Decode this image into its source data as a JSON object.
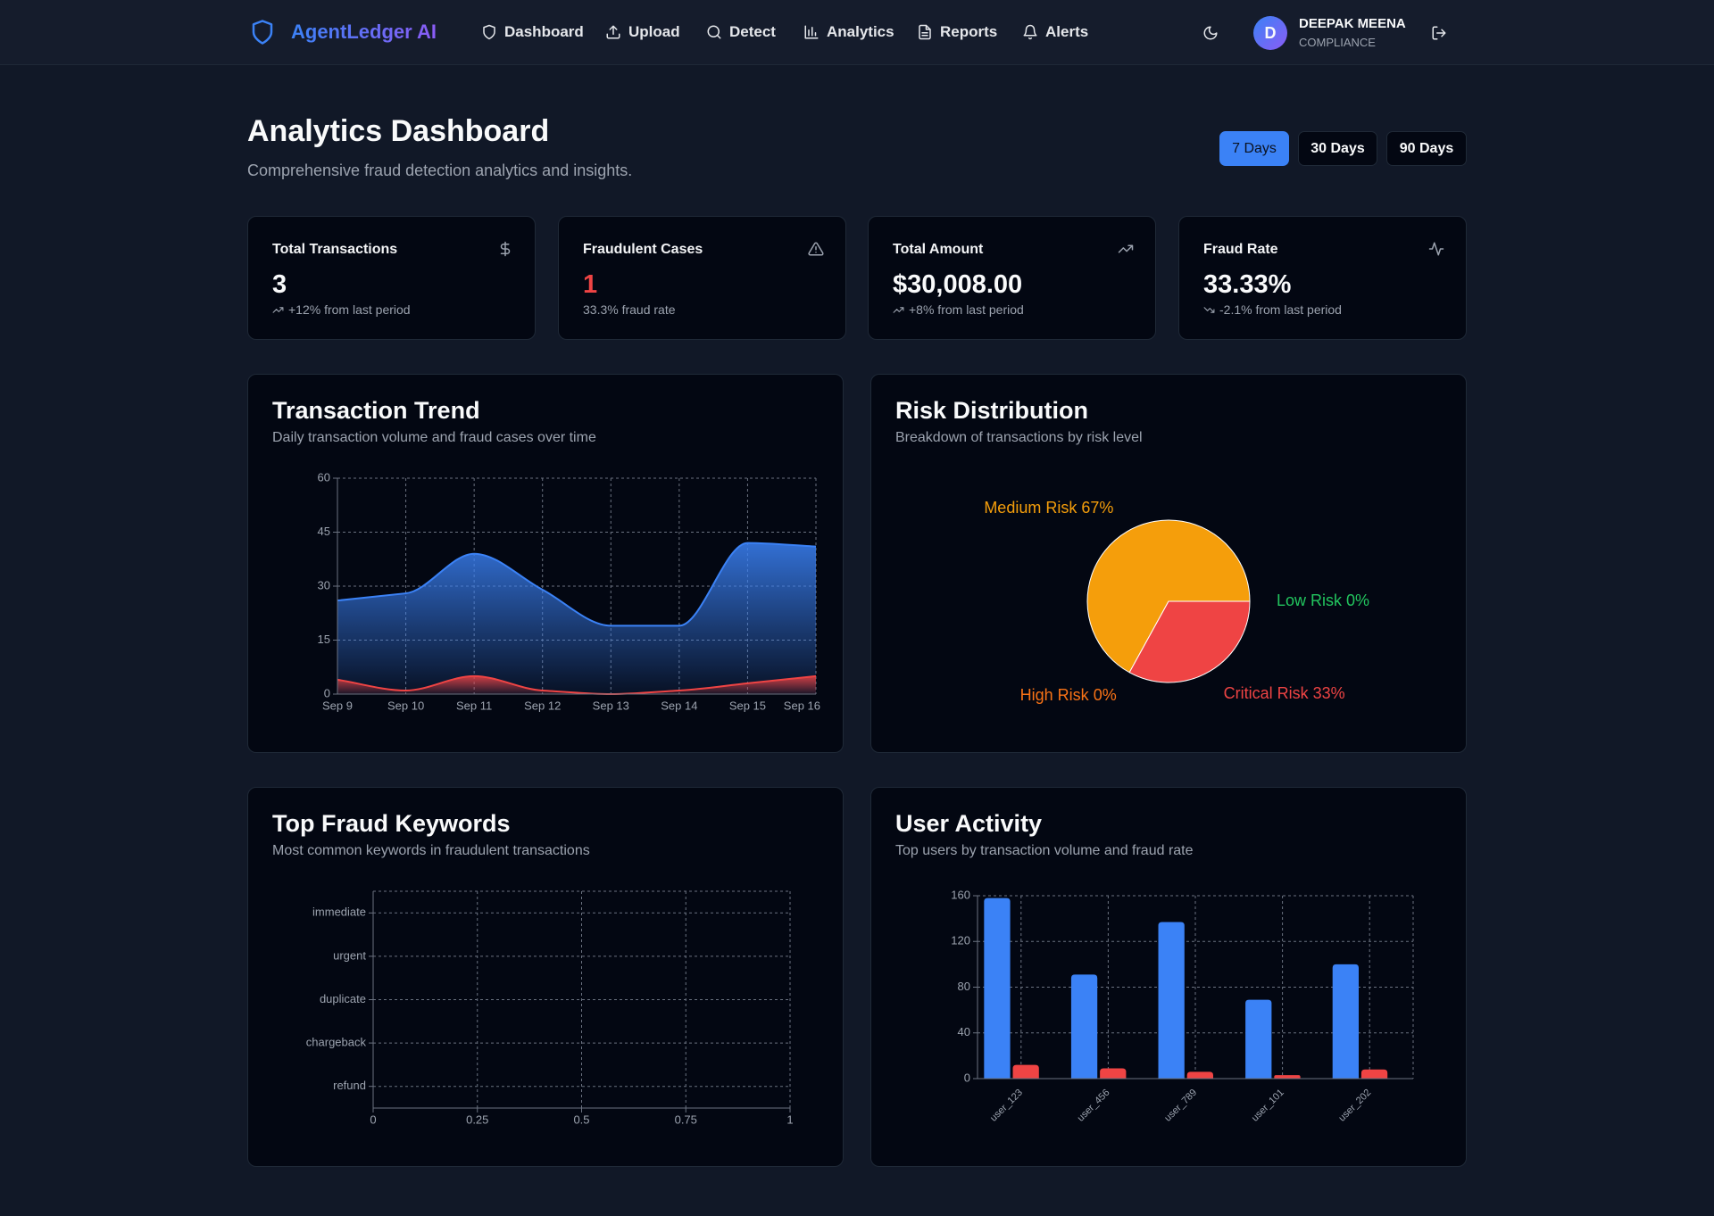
{
  "header": {
    "brand": "AgentLedger AI",
    "nav": [
      "Dashboard",
      "Upload",
      "Detect",
      "Analytics",
      "Reports",
      "Alerts"
    ],
    "user": {
      "initial": "D",
      "name": "DEEPAK MEENA",
      "role": "COMPLIANCE"
    }
  },
  "page": {
    "title": "Analytics Dashboard",
    "subtitle": "Comprehensive fraud detection analytics and insights.",
    "ranges": [
      "7 Days",
      "30 Days",
      "90 Days"
    ]
  },
  "stats": [
    {
      "label": "Total Transactions",
      "value": "3",
      "change": "+12% from last period"
    },
    {
      "label": "Fraudulent Cases",
      "value": "1",
      "change": "33.3% fraud rate"
    },
    {
      "label": "Total Amount",
      "value": "$30,008.00",
      "change": "+8% from last period"
    },
    {
      "label": "Fraud Rate",
      "value": "33.33%",
      "change": "-2.1% from last period"
    }
  ],
  "chart_data": [
    {
      "type": "area",
      "title": "Transaction Trend",
      "subtitle": "Daily transaction volume and fraud cases over time",
      "categories": [
        "Sep 9",
        "Sep 10",
        "Sep 11",
        "Sep 12",
        "Sep 13",
        "Sep 14",
        "Sep 15",
        "Sep 16"
      ],
      "series": [
        {
          "color": "#3b82f6",
          "values": [
            26,
            28,
            39,
            29,
            19,
            19,
            42,
            41
          ]
        },
        {
          "color": "#ef4444",
          "values": [
            4,
            1,
            5,
            1,
            0,
            1,
            3,
            5
          ]
        }
      ],
      "ylim": [
        0,
        60
      ],
      "yticks": [
        0,
        15,
        30,
        45,
        60
      ],
      "grid": true
    },
    {
      "type": "pie",
      "title": "Risk Distribution",
      "subtitle": "Breakdown of transactions by risk level",
      "categories": [
        "Low Risk",
        "Medium Risk",
        "High Risk",
        "Critical Risk"
      ],
      "values": [
        0,
        67,
        0,
        33
      ],
      "value_labels": [
        "0%",
        "67%",
        "0%",
        "33%"
      ],
      "colors": [
        "#22c55e",
        "#f59e0b",
        "#f97316",
        "#ef4444"
      ]
    },
    {
      "type": "hbar",
      "title": "Top Fraud Keywords",
      "subtitle": "Most common keywords in fraudulent transactions",
      "categories": [
        "immediate",
        "urgent",
        "duplicate",
        "chargeback",
        "refund"
      ],
      "values": [
        0,
        0,
        0,
        0,
        0
      ],
      "xlim": [
        0,
        1
      ],
      "xticks": [
        0,
        0.25,
        0.5,
        0.75,
        1
      ],
      "grid": true
    },
    {
      "type": "groupbar",
      "title": "User Activity",
      "subtitle": "Top users by transaction volume and fraud rate",
      "categories": [
        "user_123",
        "user_456",
        "user_789",
        "user_101",
        "user_202"
      ],
      "series": [
        {
          "color": "#3b82f6",
          "values": [
            158,
            91,
            137,
            69,
            100
          ]
        },
        {
          "color": "#ef4444",
          "values": [
            12,
            9,
            6,
            3,
            8
          ]
        }
      ],
      "ylim": [
        0,
        160
      ],
      "yticks": [
        0,
        40,
        80,
        120,
        160
      ],
      "grid": true
    }
  ]
}
